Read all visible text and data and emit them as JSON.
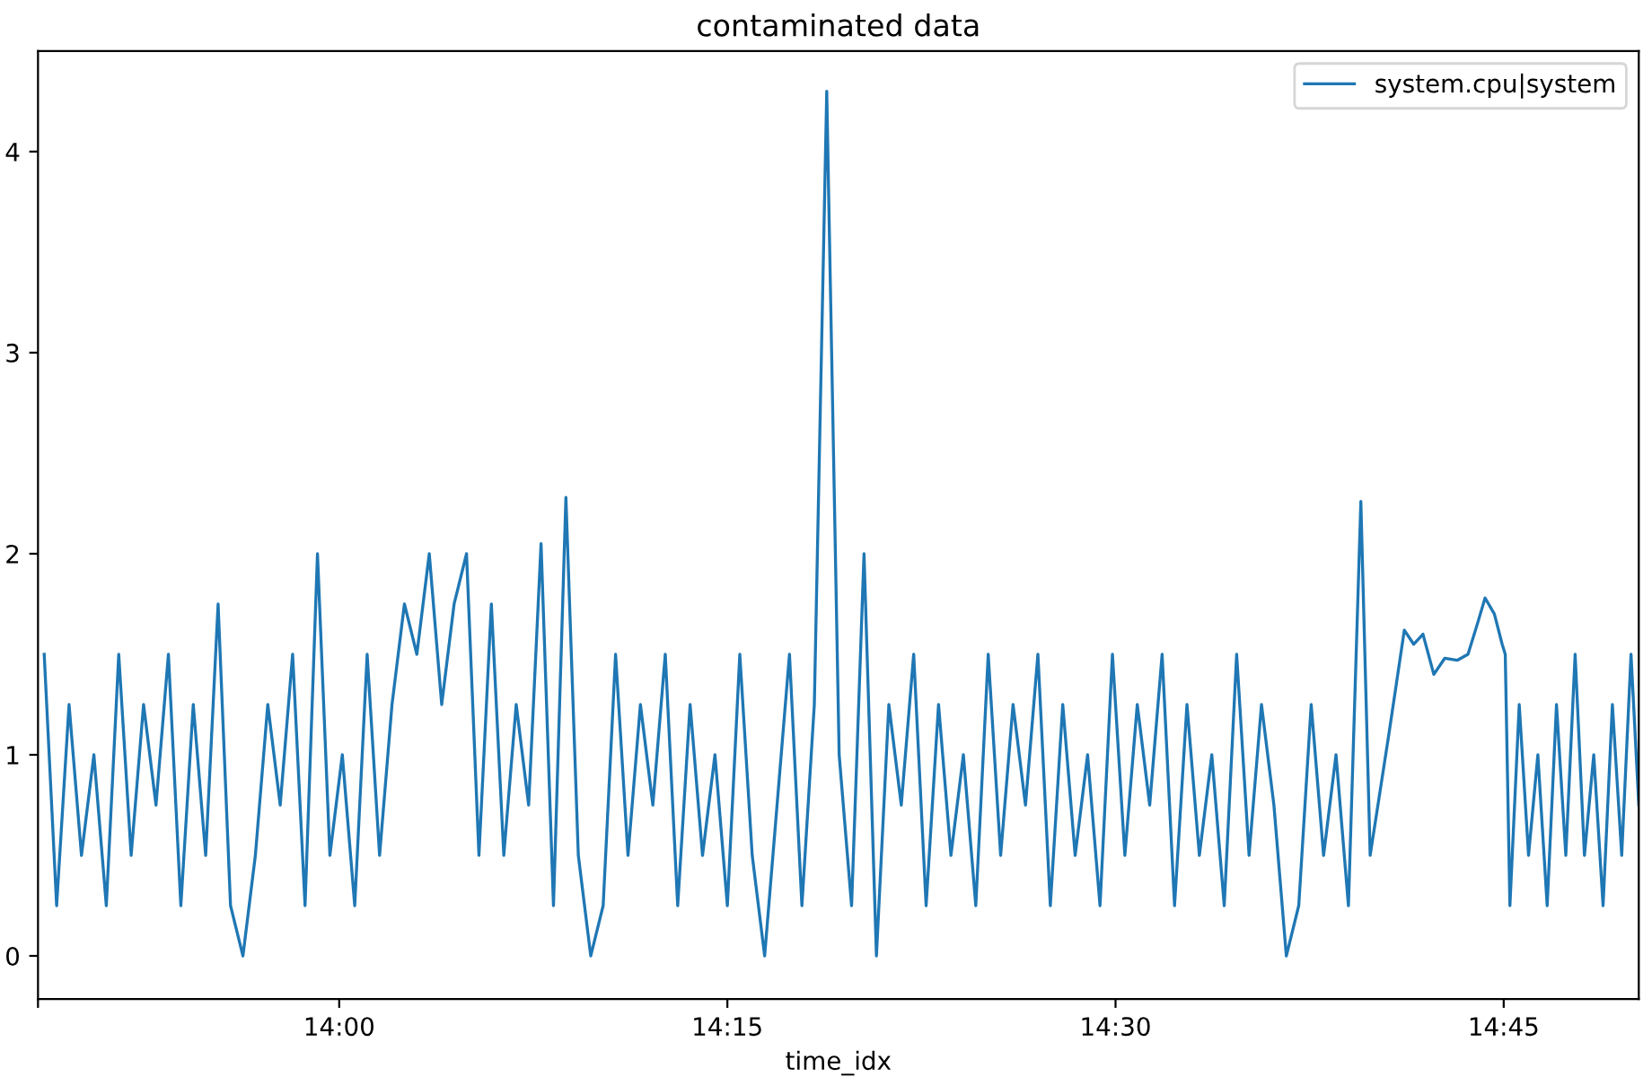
{
  "chart_data": {
    "type": "line",
    "title": "contaminated data",
    "xlabel": "time_idx",
    "x": [
      13.81,
      13.818,
      13.826,
      13.834,
      13.842,
      13.85,
      13.858,
      13.866,
      13.874,
      13.882,
      13.89,
      13.898,
      13.906,
      13.914,
      13.922,
      13.93,
      13.938,
      13.946,
      13.954,
      13.962,
      13.97,
      13.978,
      13.986,
      13.994,
      14.002,
      14.01,
      14.018,
      14.026,
      14.034,
      14.042,
      14.05,
      14.058,
      14.066,
      14.074,
      14.082,
      14.09,
      14.098,
      14.106,
      14.114,
      14.122,
      14.13,
      14.138,
      14.146,
      14.154,
      14.162,
      14.17,
      14.178,
      14.186,
      14.194,
      14.202,
      14.21,
      14.218,
      14.226,
      14.234,
      14.242,
      14.25,
      14.258,
      14.266,
      14.274,
      14.282,
      14.29,
      14.298,
      14.306,
      14.314,
      14.322,
      14.33,
      14.338,
      14.346,
      14.354,
      14.362,
      14.37,
      14.378,
      14.386,
      14.394,
      14.402,
      14.41,
      14.418,
      14.426,
      14.434,
      14.442,
      14.45,
      14.458,
      14.466,
      14.474,
      14.482,
      14.49,
      14.498,
      14.506,
      14.514,
      14.522,
      14.53,
      14.538,
      14.546,
      14.554,
      14.562,
      14.57,
      14.578,
      14.586,
      14.594,
      14.602,
      14.61,
      14.618,
      14.626,
      14.634,
      14.642,
      14.65,
      14.658,
      14.664,
      14.676,
      14.686,
      14.692,
      14.698,
      14.705,
      14.712,
      14.72,
      14.727,
      14.733,
      14.738,
      14.744,
      14.749,
      14.751,
      14.754,
      14.76,
      14.766,
      14.772,
      14.778,
      14.784,
      14.79,
      14.796,
      14.802,
      14.808,
      14.814,
      14.82,
      14.826,
      14.832,
      14.837
    ],
    "series": [
      {
        "name": "system.cpu|system",
        "color": "#1f77b4",
        "values": [
          1.5,
          0.25,
          1.25,
          0.5,
          1.0,
          0.25,
          1.5,
          0.5,
          1.25,
          0.75,
          1.5,
          0.25,
          1.25,
          0.5,
          1.75,
          0.25,
          0,
          0.5,
          1.25,
          0.75,
          1.5,
          0.25,
          2.0,
          0.5,
          1.0,
          0.25,
          1.5,
          0.5,
          1.25,
          1.75,
          1.5,
          2.0,
          1.25,
          1.75,
          2.0,
          0.5,
          1.75,
          0.5,
          1.25,
          0.75,
          2.05,
          0.25,
          2.28,
          0.5,
          0,
          0.25,
          1.5,
          0.5,
          1.25,
          0.75,
          1.5,
          0.25,
          1.25,
          0.5,
          1.0,
          0.25,
          1.5,
          0.5,
          0,
          0.75,
          1.5,
          0.25,
          1.25,
          4.3,
          1.0,
          0.25,
          2.0,
          0,
          1.25,
          0.75,
          1.5,
          0.25,
          1.25,
          0.5,
          1.0,
          0.25,
          1.5,
          0.5,
          1.25,
          0.75,
          1.5,
          0.25,
          1.25,
          0.5,
          1.0,
          0.25,
          1.5,
          0.5,
          1.25,
          0.75,
          1.5,
          0.25,
          1.25,
          0.5,
          1.0,
          0.25,
          1.5,
          0.5,
          1.25,
          0.75,
          0,
          0.25,
          1.25,
          0.5,
          1.0,
          0.25,
          2.26,
          0.5,
          1.1,
          1.62,
          1.55,
          1.6,
          1.4,
          1.48,
          1.47,
          1.5,
          1.65,
          1.78,
          1.7,
          1.55,
          1.5,
          0.25,
          1.25,
          0.5,
          1.0,
          0.25,
          1.25,
          0.5,
          1.5,
          0.5,
          1.0,
          0.25,
          1.25,
          0.5,
          1.5,
          0.75
        ]
      }
    ],
    "xlim": [
      13.806,
      14.837
    ],
    "xticks": [
      {
        "value": 13.806,
        "label": null
      },
      {
        "value": 14.0,
        "label": "14:00"
      },
      {
        "value": 14.25,
        "label": "14:15"
      },
      {
        "value": 14.5,
        "label": "14:30"
      },
      {
        "value": 14.75,
        "label": "14:45"
      }
    ],
    "ylim": [
      -0.215,
      4.5
    ],
    "yticks": [
      0,
      1,
      2,
      3,
      4
    ],
    "grid": false,
    "legend": "top right"
  }
}
